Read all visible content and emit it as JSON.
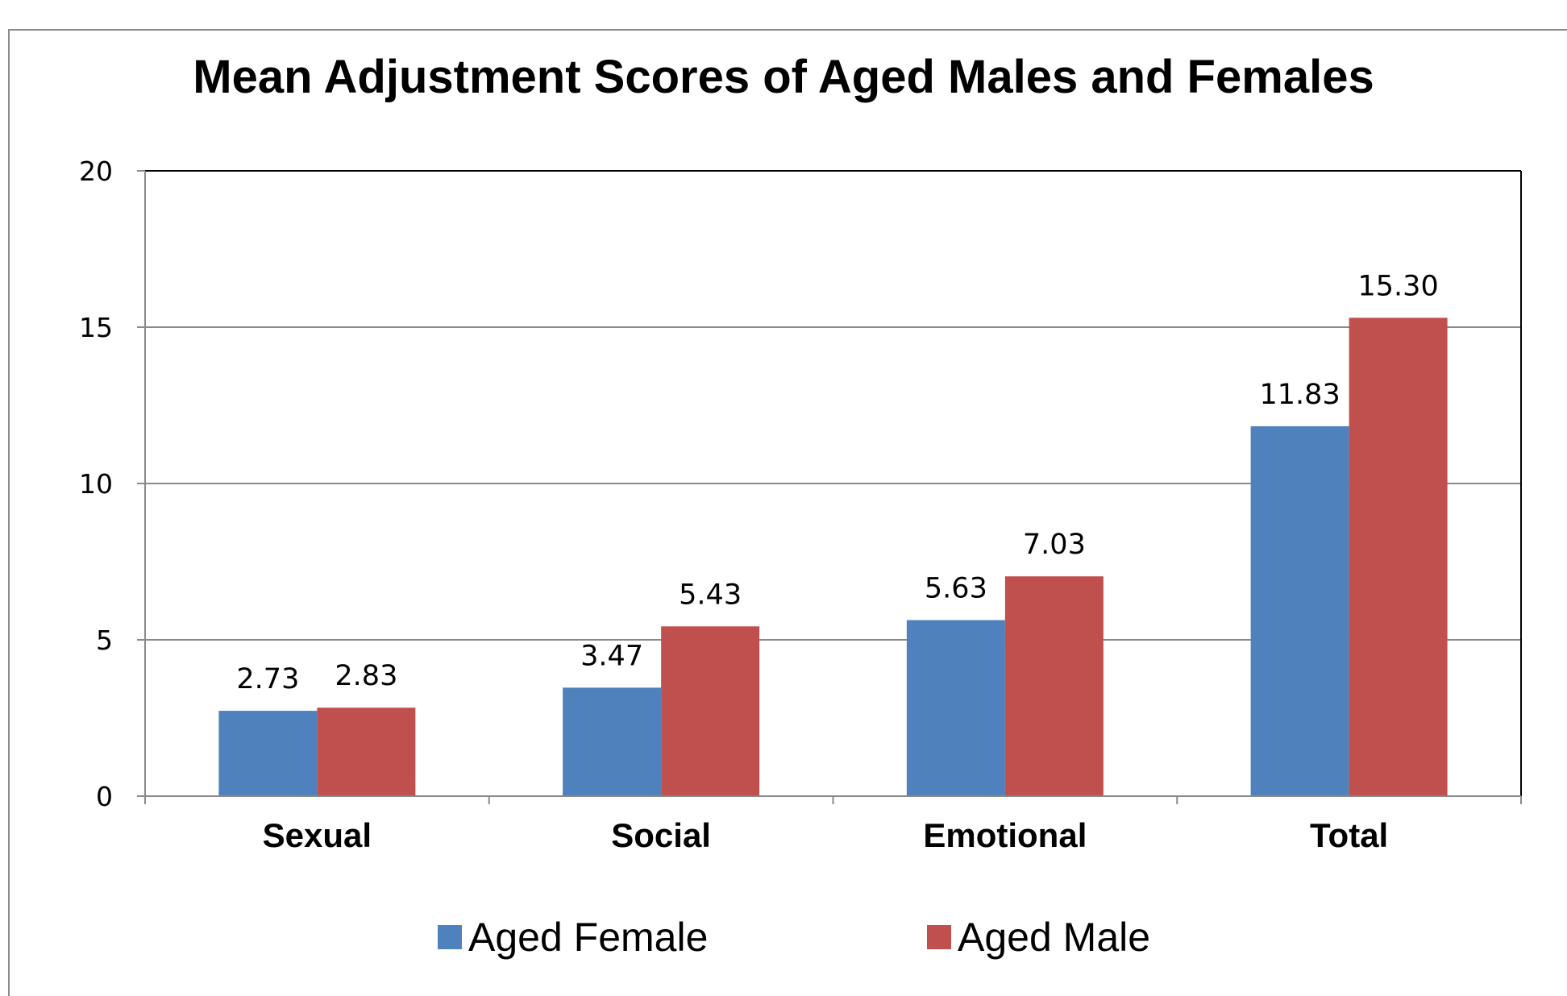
{
  "chart_data": {
    "type": "bar",
    "title": "Mean Adjustment Scores of Aged Males and Females",
    "xlabel": "",
    "ylabel": "",
    "categories": [
      "Sexual",
      "Social",
      "Emotional",
      "Total"
    ],
    "series": [
      {
        "name": "Aged Female",
        "values": [
          2.73,
          3.47,
          5.63,
          11.83
        ],
        "labels": [
          "2.73",
          "3.47",
          "5.63",
          "11.83"
        ],
        "color": "#4f81bd"
      },
      {
        "name": "Aged Male",
        "values": [
          2.83,
          5.43,
          7.03,
          15.3
        ],
        "labels": [
          "2.83",
          "5.43",
          "7.03",
          "15.30"
        ],
        "color": "#c0504d"
      }
    ],
    "ylim": [
      0,
      20
    ],
    "yticks": [
      0,
      5,
      10,
      15,
      20
    ],
    "ytick_labels": [
      "0",
      "5",
      "10",
      "15",
      "20"
    ],
    "grid": true,
    "legend_position": "bottom"
  }
}
